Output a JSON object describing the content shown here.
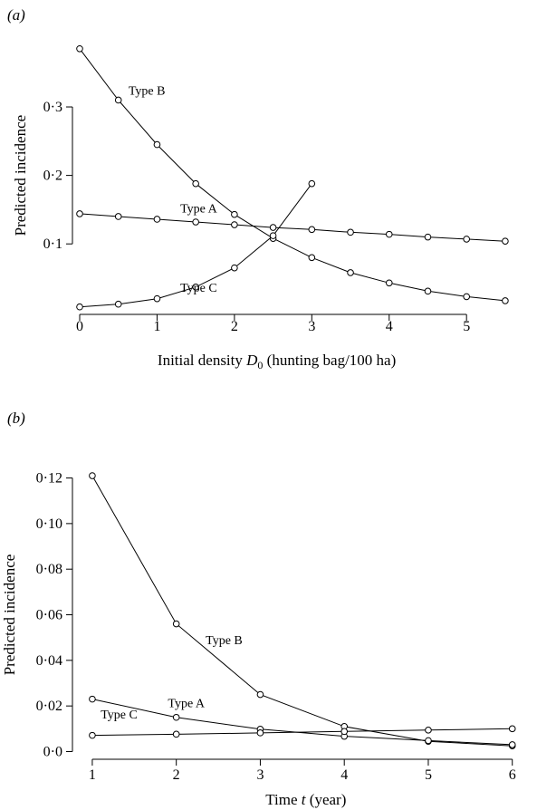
{
  "chart_data": [
    {
      "panel": "(a)",
      "type": "line",
      "xlabel_main": "Initial density ",
      "xlabel_sym": "D",
      "xlabel_sub": "0",
      "xlabel_tail": " (hunting bag/100 ha)",
      "ylabel": "Predicted incidence",
      "xlim": [
        0,
        5.7
      ],
      "ylim": [
        0.005,
        0.39
      ],
      "xticks": [
        0,
        1,
        2,
        3,
        4,
        5
      ],
      "xtick_labels": [
        "0",
        "1",
        "2",
        "3",
        "4",
        "5"
      ],
      "yticks": [
        0.1,
        0.2,
        0.3
      ],
      "ytick_labels": [
        "0·1",
        "0·2",
        "0·3"
      ],
      "series": [
        {
          "name": "Type B",
          "x": [
            0,
            0.5,
            1,
            1.5,
            2,
            2.5,
            3,
            3.5,
            4,
            4.5,
            5,
            5.5
          ],
          "y": [
            0.385,
            0.31,
            0.245,
            0.188,
            0.143,
            0.108,
            0.08,
            0.058,
            0.043,
            0.031,
            0.023,
            0.017
          ],
          "label_at": [
            0.63,
            0.318
          ]
        },
        {
          "name": "Type A",
          "x": [
            0,
            0.5,
            1,
            1.5,
            2,
            2.5,
            3,
            3.5,
            4,
            4.5,
            5,
            5.5
          ],
          "y": [
            0.144,
            0.14,
            0.136,
            0.132,
            0.128,
            0.124,
            0.121,
            0.117,
            0.114,
            0.11,
            0.107,
            0.104
          ],
          "label_at": [
            1.3,
            0.146
          ]
        },
        {
          "name": "Type C",
          "x": [
            0,
            0.5,
            1,
            1.5,
            2,
            2.5,
            3
          ],
          "y": [
            0.008,
            0.012,
            0.02,
            0.037,
            0.065,
            0.112,
            0.188
          ],
          "label_at": [
            1.3,
            0.03
          ]
        }
      ]
    },
    {
      "panel": "(b)",
      "type": "line",
      "xlabel_main": "Time ",
      "xlabel_sym": "t",
      "xlabel_sub": "",
      "xlabel_tail": " (year)",
      "ylabel": "Predicted incidence",
      "xlim": [
        0.85,
        6.1
      ],
      "ylim": [
        -0.001,
        0.123
      ],
      "xticks": [
        1,
        2,
        3,
        4,
        5,
        6
      ],
      "xtick_labels": [
        "1",
        "2",
        "3",
        "4",
        "5",
        "6"
      ],
      "yticks": [
        0.0,
        0.02,
        0.04,
        0.06,
        0.08,
        0.1,
        0.12
      ],
      "ytick_labels": [
        "0·0",
        "0·02",
        "0·04",
        "0·06",
        "0·08",
        "0·10",
        "0·12"
      ],
      "series": [
        {
          "name": "Type B",
          "x": [
            1,
            2,
            3,
            4,
            5,
            6
          ],
          "y": [
            0.121,
            0.056,
            0.025,
            0.011,
            0.0045,
            0.0025
          ],
          "label_at": [
            2.35,
            0.047
          ]
        },
        {
          "name": "Type A",
          "x": [
            1,
            2,
            3,
            4,
            5,
            6
          ],
          "y": [
            0.023,
            0.015,
            0.0098,
            0.0067,
            0.0048,
            0.003
          ],
          "label_at": [
            1.9,
            0.0195
          ]
        },
        {
          "name": "Type C",
          "x": [
            1,
            2,
            3,
            4,
            5,
            6
          ],
          "y": [
            0.0071,
            0.0076,
            0.0082,
            0.0088,
            0.0094,
            0.01
          ],
          "label_at": [
            1.1,
            0.0145
          ]
        }
      ]
    }
  ]
}
